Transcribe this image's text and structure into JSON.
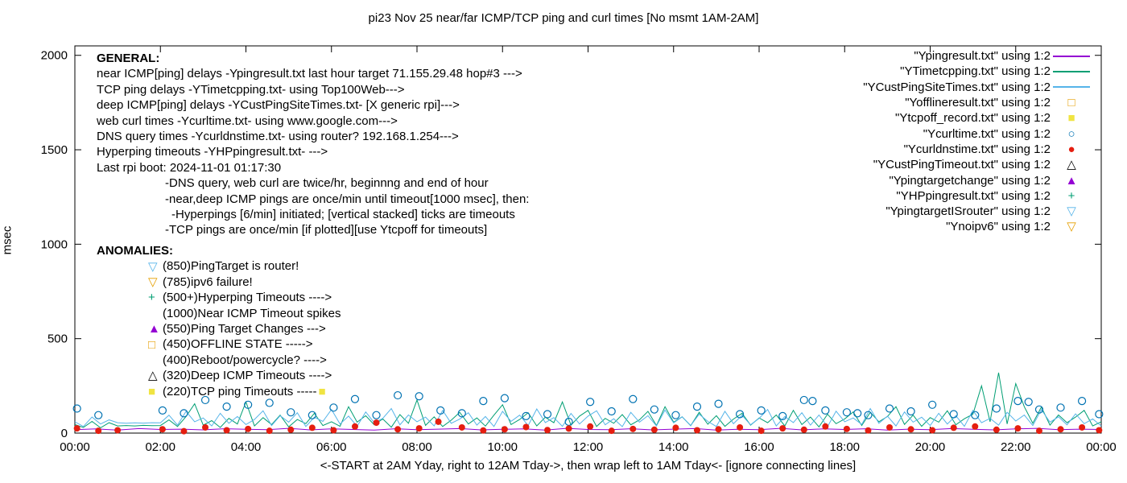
{
  "title": "pi23 Nov 25  near/far ICMP/TCP ping and curl times [No msmt 1AM-2AM]",
  "palette": {
    "purple": "#9400d3",
    "green": "#009e73",
    "skyblue": "#56b4e9",
    "orange": "#e69f00",
    "yellow": "#f0e442",
    "blue": "#0072b2",
    "red": "#e51e10",
    "black": "#000000"
  },
  "marker_glyphs": {
    "square-open": "□",
    "square-filled": "■",
    "circle-open": "○",
    "circle-filled": "●",
    "triangle-up-open": "△",
    "triangle-up-filled": "▲",
    "triangle-down-open": "▽",
    "plus": "+",
    "none": ""
  },
  "axes": {
    "ylabel": "msec",
    "xlabel": "<-START at 2AM Yday, right to 12AM Tday->, then wrap left to 1AM Tday<- [ignore connecting lines]"
  },
  "general": {
    "heading": "GENERAL:",
    "lines": [
      "near ICMP[ping] delays -Ypingresult.txt last hour target 71.155.29.48 hop#3 --->",
      "TCP ping delays -YTimetcpping.txt- using Top100Web--->",
      "deep ICMP[ping] delays -YCustPingSiteTimes.txt- [X generic rpi]--->",
      "web curl times -Ycurltime.txt- using www.google.com--->",
      "DNS query times -Ycurldnstime.txt- using router? 192.168.1.254--->",
      "Hyperping timeouts -YHPpingresult.txt- --->",
      "Last rpi boot: 2024-11-01 01:17:30",
      "-DNS query, web curl are twice/hr, beginnng and end of hour",
      "-near,deep ICMP pings are once/min until timeout[1000 msec], then:",
      "-Hyperpings [6/min] initiated; [vertical stacked] ticks are timeouts",
      "-TCP pings are once/min [if plotted][use Ytcpoff for timeouts]"
    ]
  },
  "anomalies": {
    "heading": "ANOMALIES:",
    "items": [
      {
        "marker": "triangle-down-open",
        "color": "skyblue",
        "text": "(850)PingTarget is router!"
      },
      {
        "marker": "triangle-down-open",
        "color": "orange",
        "text": "(785)ipv6 failure!"
      },
      {
        "marker": "plus",
        "color": "green",
        "text": "(500+)Hyperping Timeouts ---->"
      },
      {
        "marker": "none",
        "color": "black",
        "text": "(1000)Near ICMP Timeout spikes"
      },
      {
        "marker": "triangle-up-filled",
        "color": "purple",
        "text": "(550)Ping Target Changes --->"
      },
      {
        "marker": "square-open",
        "color": "orange",
        "text": "(450)OFFLINE STATE ----->"
      },
      {
        "marker": "none",
        "color": "black",
        "text": "(400)Reboot/powercycle? ---->"
      },
      {
        "marker": "triangle-up-open",
        "color": "black",
        "text": "(320)Deep ICMP Timeouts ---->"
      },
      {
        "marker": "square-filled",
        "color": "yellow",
        "text": "(220)TCP ping Timeouts -----",
        "trailing_marker": "square-filled",
        "trailing_color": "yellow"
      }
    ]
  },
  "legend": {
    "items": [
      {
        "label": "\"Ypingresult.txt\" using 1:2",
        "sample": "line",
        "color": "purple"
      },
      {
        "label": "\"YTimetcpping.txt\" using 1:2",
        "sample": "line",
        "color": "green"
      },
      {
        "label": "\"YCustPingSiteTimes.txt\" using 1:2",
        "sample": "line",
        "color": "skyblue"
      },
      {
        "label": "\"Yofflineresult.txt\" using 1:2",
        "sample": "square-open",
        "color": "orange"
      },
      {
        "label": "\"Ytcpoff_record.txt\" using 1:2",
        "sample": "square-filled",
        "color": "yellow"
      },
      {
        "label": "\"Ycurltime.txt\" using 1:2",
        "sample": "circle-open",
        "color": "blue"
      },
      {
        "label": "\"Ycurldnstime.txt\" using 1:2",
        "sample": "circle-filled",
        "color": "red"
      },
      {
        "label": "\"YCustPingTimeout.txt\" using 1:2",
        "sample": "triangle-up-open",
        "color": "black"
      },
      {
        "label": "\"Ypingtargetchange\" using 1:2",
        "sample": "triangle-up-filled",
        "color": "purple"
      },
      {
        "label": "\"YHPpingresult.txt\" using 1:2",
        "sample": "plus",
        "color": "green"
      },
      {
        "label": "\"YpingtargetISrouter\" using 1:2",
        "sample": "triangle-down-open",
        "color": "skyblue"
      },
      {
        "label": "\"Ynoipv6\" using 1:2",
        "sample": "triangle-down-open",
        "color": "orange"
      }
    ]
  },
  "chart_data": {
    "type": "line",
    "title": "pi23 Nov 25  near/far ICMP/TCP ping and curl times [No msmt 1AM-2AM]",
    "xlabel": "<-START at 2AM Yday, right to 12AM Tday->, then wrap left to 1AM Tday<- [ignore connecting lines]",
    "ylabel": "msec",
    "x_range": [
      0,
      24
    ],
    "y_range": [
      0,
      2050
    ],
    "x_ticks": [
      "00:00",
      "02:00",
      "04:00",
      "06:00",
      "08:00",
      "10:00",
      "12:00",
      "14:00",
      "16:00",
      "18:00",
      "20:00",
      "22:00",
      "00:00"
    ],
    "x_tick_hours": [
      0,
      2,
      4,
      6,
      8,
      10,
      12,
      14,
      16,
      18,
      20,
      22,
      24
    ],
    "y_ticks": [
      0,
      500,
      1000,
      1500,
      2000
    ],
    "legend_position": "top-right",
    "grid": false,
    "series": [
      {
        "name": "Ypingresult.txt",
        "style": "line",
        "color": "purple",
        "x0": 0,
        "dx": 0.5,
        "values": [
          18,
          22,
          16,
          24,
          19,
          21,
          17,
          23,
          20,
          18,
          25,
          17,
          22,
          19,
          16,
          23,
          18,
          21,
          24,
          17,
          20,
          22,
          16,
          25,
          19,
          18,
          23,
          17,
          21,
          24,
          16,
          20,
          18,
          25,
          17,
          22,
          19,
          23,
          16,
          21,
          18,
          24,
          20,
          17,
          22,
          25,
          18,
          21,
          19
        ]
      },
      {
        "name": "YTimetcpping.txt",
        "style": "line",
        "color": "green",
        "x0": 0,
        "dx": 0.2,
        "values": [
          45,
          30,
          62,
          28,
          55,
          38,
          40,
          38,
          41,
          39,
          40,
          70,
          35,
          88,
          155,
          42,
          66,
          30,
          78,
          48,
          165,
          38,
          82,
          45,
          95,
          33,
          72,
          50,
          105,
          40,
          60,
          36,
          140,
          58,
          92,
          44,
          75,
          31,
          98,
          52,
          175,
          41,
          86,
          35,
          68,
          110,
          48,
          80,
          37,
          95,
          150,
          45,
          72,
          108,
          38,
          84,
          55,
          165,
          42,
          90,
          120,
          35,
          78,
          52,
          98,
          44,
          70,
          115,
          40,
          140,
          58,
          86,
          39,
          110,
          47,
          92,
          36,
          74,
          105,
          42,
          80,
          55,
          96,
          38,
          120,
          45,
          85,
          33,
          100,
          50,
          75,
          112,
          40,
          110,
          60,
          88,
          140,
          46,
          95,
          36,
          82,
          58,
          118,
          44,
          76,
          100,
          250,
          60,
          320,
          48,
          262,
          140,
          52,
          138,
          42,
          96,
          55,
          85,
          120,
          38,
          60
        ]
      },
      {
        "name": "YCustPingSiteTimes.txt",
        "style": "line",
        "color": "skyblue",
        "x0": 0,
        "dx": 0.2,
        "values": [
          60,
          35,
          85,
          48,
          70,
          55,
          52,
          54,
          53,
          55,
          54,
          95,
          42,
          115,
          60,
          80,
          38,
          105,
          52,
          88,
          45,
          72,
          118,
          40,
          92,
          58,
          108,
          35,
          84,
          62,
          125,
          48,
          90,
          36,
          112,
          55,
          78,
          130,
          44,
          96,
          60,
          85,
          38,
          120,
          52,
          74,
          108,
          42,
          88,
          35,
          115,
          62,
          95,
          40,
          128,
          56,
          82,
          36,
          104,
          48,
          90,
          118,
          44,
          76,
          34,
          110,
          58,
          92,
          38,
          122,
          54,
          86,
          40,
          100,
          62,
          35,
          115,
          50,
          94,
          44,
          78,
          125,
          38,
          88,
          56,
          108,
          42,
          96,
          34,
          116,
          60,
          80,
          46,
          130,
          52,
          90,
          38,
          112,
          58,
          84,
          40,
          105,
          48,
          92,
          36,
          120,
          55,
          78,
          42,
          110,
          64,
          96,
          40,
          124,
          58,
          86,
          44,
          102,
          50,
          75,
          38
        ]
      },
      {
        "name": "Yofflineresult.txt",
        "style": "points",
        "marker": "square-open",
        "color": "orange",
        "points": []
      },
      {
        "name": "Ytcpoff_record.txt",
        "style": "points",
        "marker": "square-filled",
        "color": "yellow",
        "points": []
      },
      {
        "name": "Ycurltime.txt",
        "style": "points",
        "marker": "circle-open",
        "color": "blue",
        "points": [
          [
            0.05,
            130
          ],
          [
            0.55,
            95
          ],
          [
            2.05,
            120
          ],
          [
            2.55,
            105
          ],
          [
            3.05,
            175
          ],
          [
            3.55,
            140
          ],
          [
            4.05,
            150
          ],
          [
            4.55,
            160
          ],
          [
            5.05,
            110
          ],
          [
            5.55,
            95
          ],
          [
            6.05,
            135
          ],
          [
            6.55,
            180
          ],
          [
            7.05,
            95
          ],
          [
            7.55,
            200
          ],
          [
            8.05,
            195
          ],
          [
            8.55,
            120
          ],
          [
            9.05,
            105
          ],
          [
            9.55,
            170
          ],
          [
            10.05,
            185
          ],
          [
            10.55,
            90
          ],
          [
            11.05,
            100
          ],
          [
            11.55,
            60
          ],
          [
            12.05,
            165
          ],
          [
            12.55,
            115
          ],
          [
            13.05,
            180
          ],
          [
            13.55,
            125
          ],
          [
            14.05,
            95
          ],
          [
            14.55,
            140
          ],
          [
            15.05,
            155
          ],
          [
            15.55,
            100
          ],
          [
            16.05,
            120
          ],
          [
            16.55,
            90
          ],
          [
            17.05,
            175
          ],
          [
            17.25,
            170
          ],
          [
            17.55,
            120
          ],
          [
            18.05,
            110
          ],
          [
            18.3,
            105
          ],
          [
            18.55,
            95
          ],
          [
            19.05,
            130
          ],
          [
            19.55,
            115
          ],
          [
            20.05,
            150
          ],
          [
            20.55,
            100
          ],
          [
            21.05,
            95
          ],
          [
            21.55,
            130
          ],
          [
            22.05,
            170
          ],
          [
            22.3,
            165
          ],
          [
            22.55,
            125
          ],
          [
            23.05,
            135
          ],
          [
            23.55,
            170
          ],
          [
            23.95,
            100
          ]
        ]
      },
      {
        "name": "Ycurldnstime.txt",
        "style": "points",
        "marker": "circle-filled",
        "color": "red",
        "points": [
          [
            0.05,
            25
          ],
          [
            0.55,
            12
          ],
          [
            1.0,
            15
          ],
          [
            2.05,
            20
          ],
          [
            2.55,
            10
          ],
          [
            3.05,
            30
          ],
          [
            3.55,
            15
          ],
          [
            4.05,
            22
          ],
          [
            4.55,
            12
          ],
          [
            5.05,
            18
          ],
          [
            5.55,
            28
          ],
          [
            6.05,
            15
          ],
          [
            6.55,
            35
          ],
          [
            7.05,
            55
          ],
          [
            7.55,
            20
          ],
          [
            8.05,
            25
          ],
          [
            8.5,
            60
          ],
          [
            9.05,
            30
          ],
          [
            9.55,
            14
          ],
          [
            10.05,
            20
          ],
          [
            10.55,
            32
          ],
          [
            11.05,
            16
          ],
          [
            11.55,
            24
          ],
          [
            12.05,
            35
          ],
          [
            12.55,
            12
          ],
          [
            13.05,
            22
          ],
          [
            13.55,
            18
          ],
          [
            14.05,
            28
          ],
          [
            14.55,
            15
          ],
          [
            15.05,
            20
          ],
          [
            15.55,
            30
          ],
          [
            16.05,
            12
          ],
          [
            16.55,
            25
          ],
          [
            17.05,
            18
          ],
          [
            17.55,
            35
          ],
          [
            18.05,
            22
          ],
          [
            18.55,
            14
          ],
          [
            19.05,
            30
          ],
          [
            19.55,
            20
          ],
          [
            20.05,
            15
          ],
          [
            20.55,
            28
          ],
          [
            21.05,
            35
          ],
          [
            21.55,
            18
          ],
          [
            22.05,
            25
          ],
          [
            22.55,
            12
          ],
          [
            23.05,
            20
          ],
          [
            23.55,
            30
          ],
          [
            23.95,
            15
          ]
        ]
      },
      {
        "name": "YCustPingTimeout.txt",
        "style": "points",
        "marker": "triangle-up-open",
        "color": "black",
        "points": []
      },
      {
        "name": "Ypingtargetchange",
        "style": "points",
        "marker": "triangle-up-filled",
        "color": "purple",
        "points": []
      },
      {
        "name": "YHPpingresult.txt",
        "style": "points",
        "marker": "plus",
        "color": "green",
        "points": []
      },
      {
        "name": "YpingtargetISrouter",
        "style": "points",
        "marker": "triangle-down-open",
        "color": "skyblue",
        "points": []
      },
      {
        "name": "Ynoipv6",
        "style": "points",
        "marker": "triangle-down-open",
        "color": "orange",
        "points": []
      }
    ]
  }
}
